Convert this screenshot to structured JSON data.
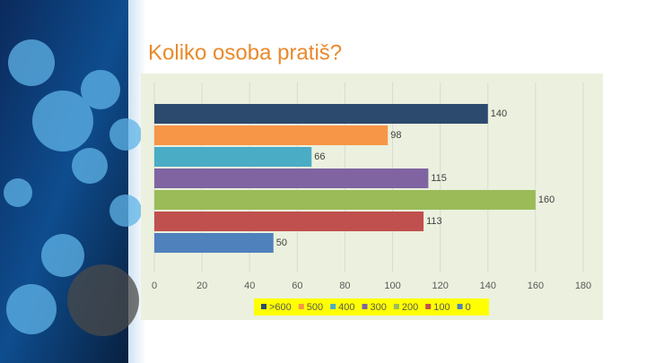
{
  "chart_data": {
    "type": "bar",
    "orientation": "horizontal",
    "title": "Koliko osoba pratiš?",
    "series": [
      {
        "name": ">600",
        "color": "#2c4a6e",
        "values": [
          140
        ]
      },
      {
        "name": "500",
        "color": "#f79646",
        "values": [
          98
        ]
      },
      {
        "name": "400",
        "color": "#4bacc6",
        "values": [
          66
        ]
      },
      {
        "name": "300",
        "color": "#8064a2",
        "values": [
          115
        ]
      },
      {
        "name": "200",
        "color": "#9bbb59",
        "values": [
          160
        ]
      },
      {
        "name": "100",
        "color": "#c0504d",
        "values": [
          113
        ]
      },
      {
        "name": "0",
        "color": "#4f81bd",
        "values": [
          50
        ]
      }
    ],
    "xlim": [
      0,
      180
    ],
    "xticks": [
      0,
      20,
      40,
      60,
      80,
      100,
      120,
      140,
      160,
      180
    ],
    "grid": true
  }
}
